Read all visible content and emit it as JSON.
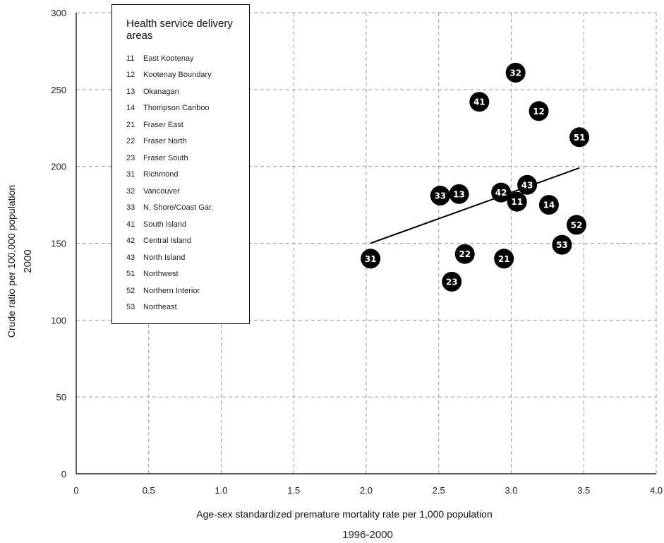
{
  "chart_data": {
    "type": "scatter",
    "xlabel": "Age-sex standardized premature mortality rate per 1,000 population",
    "xlabel_sub": "1996-2000",
    "ylabel": "Crude ratio per 100,000 population",
    "ylabel_sub": "2000",
    "xlim": [
      0,
      4.0
    ],
    "ylim": [
      0,
      300
    ],
    "x_ticks": [
      "0",
      "0.5",
      "1.0",
      "1.5",
      "2.0",
      "2.5",
      "3.0",
      "3.5",
      "4.0"
    ],
    "x_tick_values": [
      0,
      0.5,
      1.0,
      1.5,
      2.0,
      2.5,
      3.0,
      3.5,
      4.0
    ],
    "y_ticks": [
      "0",
      "50",
      "100",
      "150",
      "200",
      "250",
      "300"
    ],
    "y_tick_values": [
      0,
      50,
      100,
      150,
      200,
      250,
      300
    ],
    "grid": true,
    "legend_position": "top-left",
    "legend_title": "Health service delivery areas",
    "legend": [
      {
        "code": "11",
        "name": "East Kootenay"
      },
      {
        "code": "12",
        "name": "Kootenay Boundary"
      },
      {
        "code": "13",
        "name": "Okanagan"
      },
      {
        "code": "14",
        "name": "Thompson Cariboo"
      },
      {
        "code": "21",
        "name": "Fraser East"
      },
      {
        "code": "22",
        "name": "Fraser North"
      },
      {
        "code": "23",
        "name": "Fraser South"
      },
      {
        "code": "31",
        "name": "Richmond"
      },
      {
        "code": "32",
        "name": "Vancouver"
      },
      {
        "code": "33",
        "name": "N. Shore/Coast Gar."
      },
      {
        "code": "41",
        "name": "South Island"
      },
      {
        "code": "42",
        "name": "Central Island"
      },
      {
        "code": "43",
        "name": "North Island"
      },
      {
        "code": "51",
        "name": "Northwest"
      },
      {
        "code": "52",
        "name": "Northern Interior"
      },
      {
        "code": "53",
        "name": "Northeast"
      }
    ],
    "points": [
      {
        "label": "11",
        "x": 3.04,
        "y": 177
      },
      {
        "label": "12",
        "x": 3.19,
        "y": 236
      },
      {
        "label": "13",
        "x": 2.64,
        "y": 182
      },
      {
        "label": "14",
        "x": 3.26,
        "y": 175
      },
      {
        "label": "21",
        "x": 2.95,
        "y": 140
      },
      {
        "label": "22",
        "x": 2.68,
        "y": 143
      },
      {
        "label": "23",
        "x": 2.59,
        "y": 125
      },
      {
        "label": "31",
        "x": 2.03,
        "y": 140
      },
      {
        "label": "32",
        "x": 3.03,
        "y": 261
      },
      {
        "label": "33",
        "x": 2.51,
        "y": 181
      },
      {
        "label": "41",
        "x": 2.78,
        "y": 242
      },
      {
        "label": "42",
        "x": 2.93,
        "y": 183
      },
      {
        "label": "43",
        "x": 3.11,
        "y": 188
      },
      {
        "label": "51",
        "x": 3.47,
        "y": 219
      },
      {
        "label": "52",
        "x": 3.45,
        "y": 162
      },
      {
        "label": "53",
        "x": 3.35,
        "y": 149
      }
    ],
    "trend_line": {
      "x": [
        2.03,
        3.47
      ],
      "y": [
        150,
        199
      ]
    },
    "colors": {
      "marker": "#000000",
      "marker_text": "#ffffff",
      "grid": "#9a9a9a",
      "trend": "#000000"
    }
  }
}
